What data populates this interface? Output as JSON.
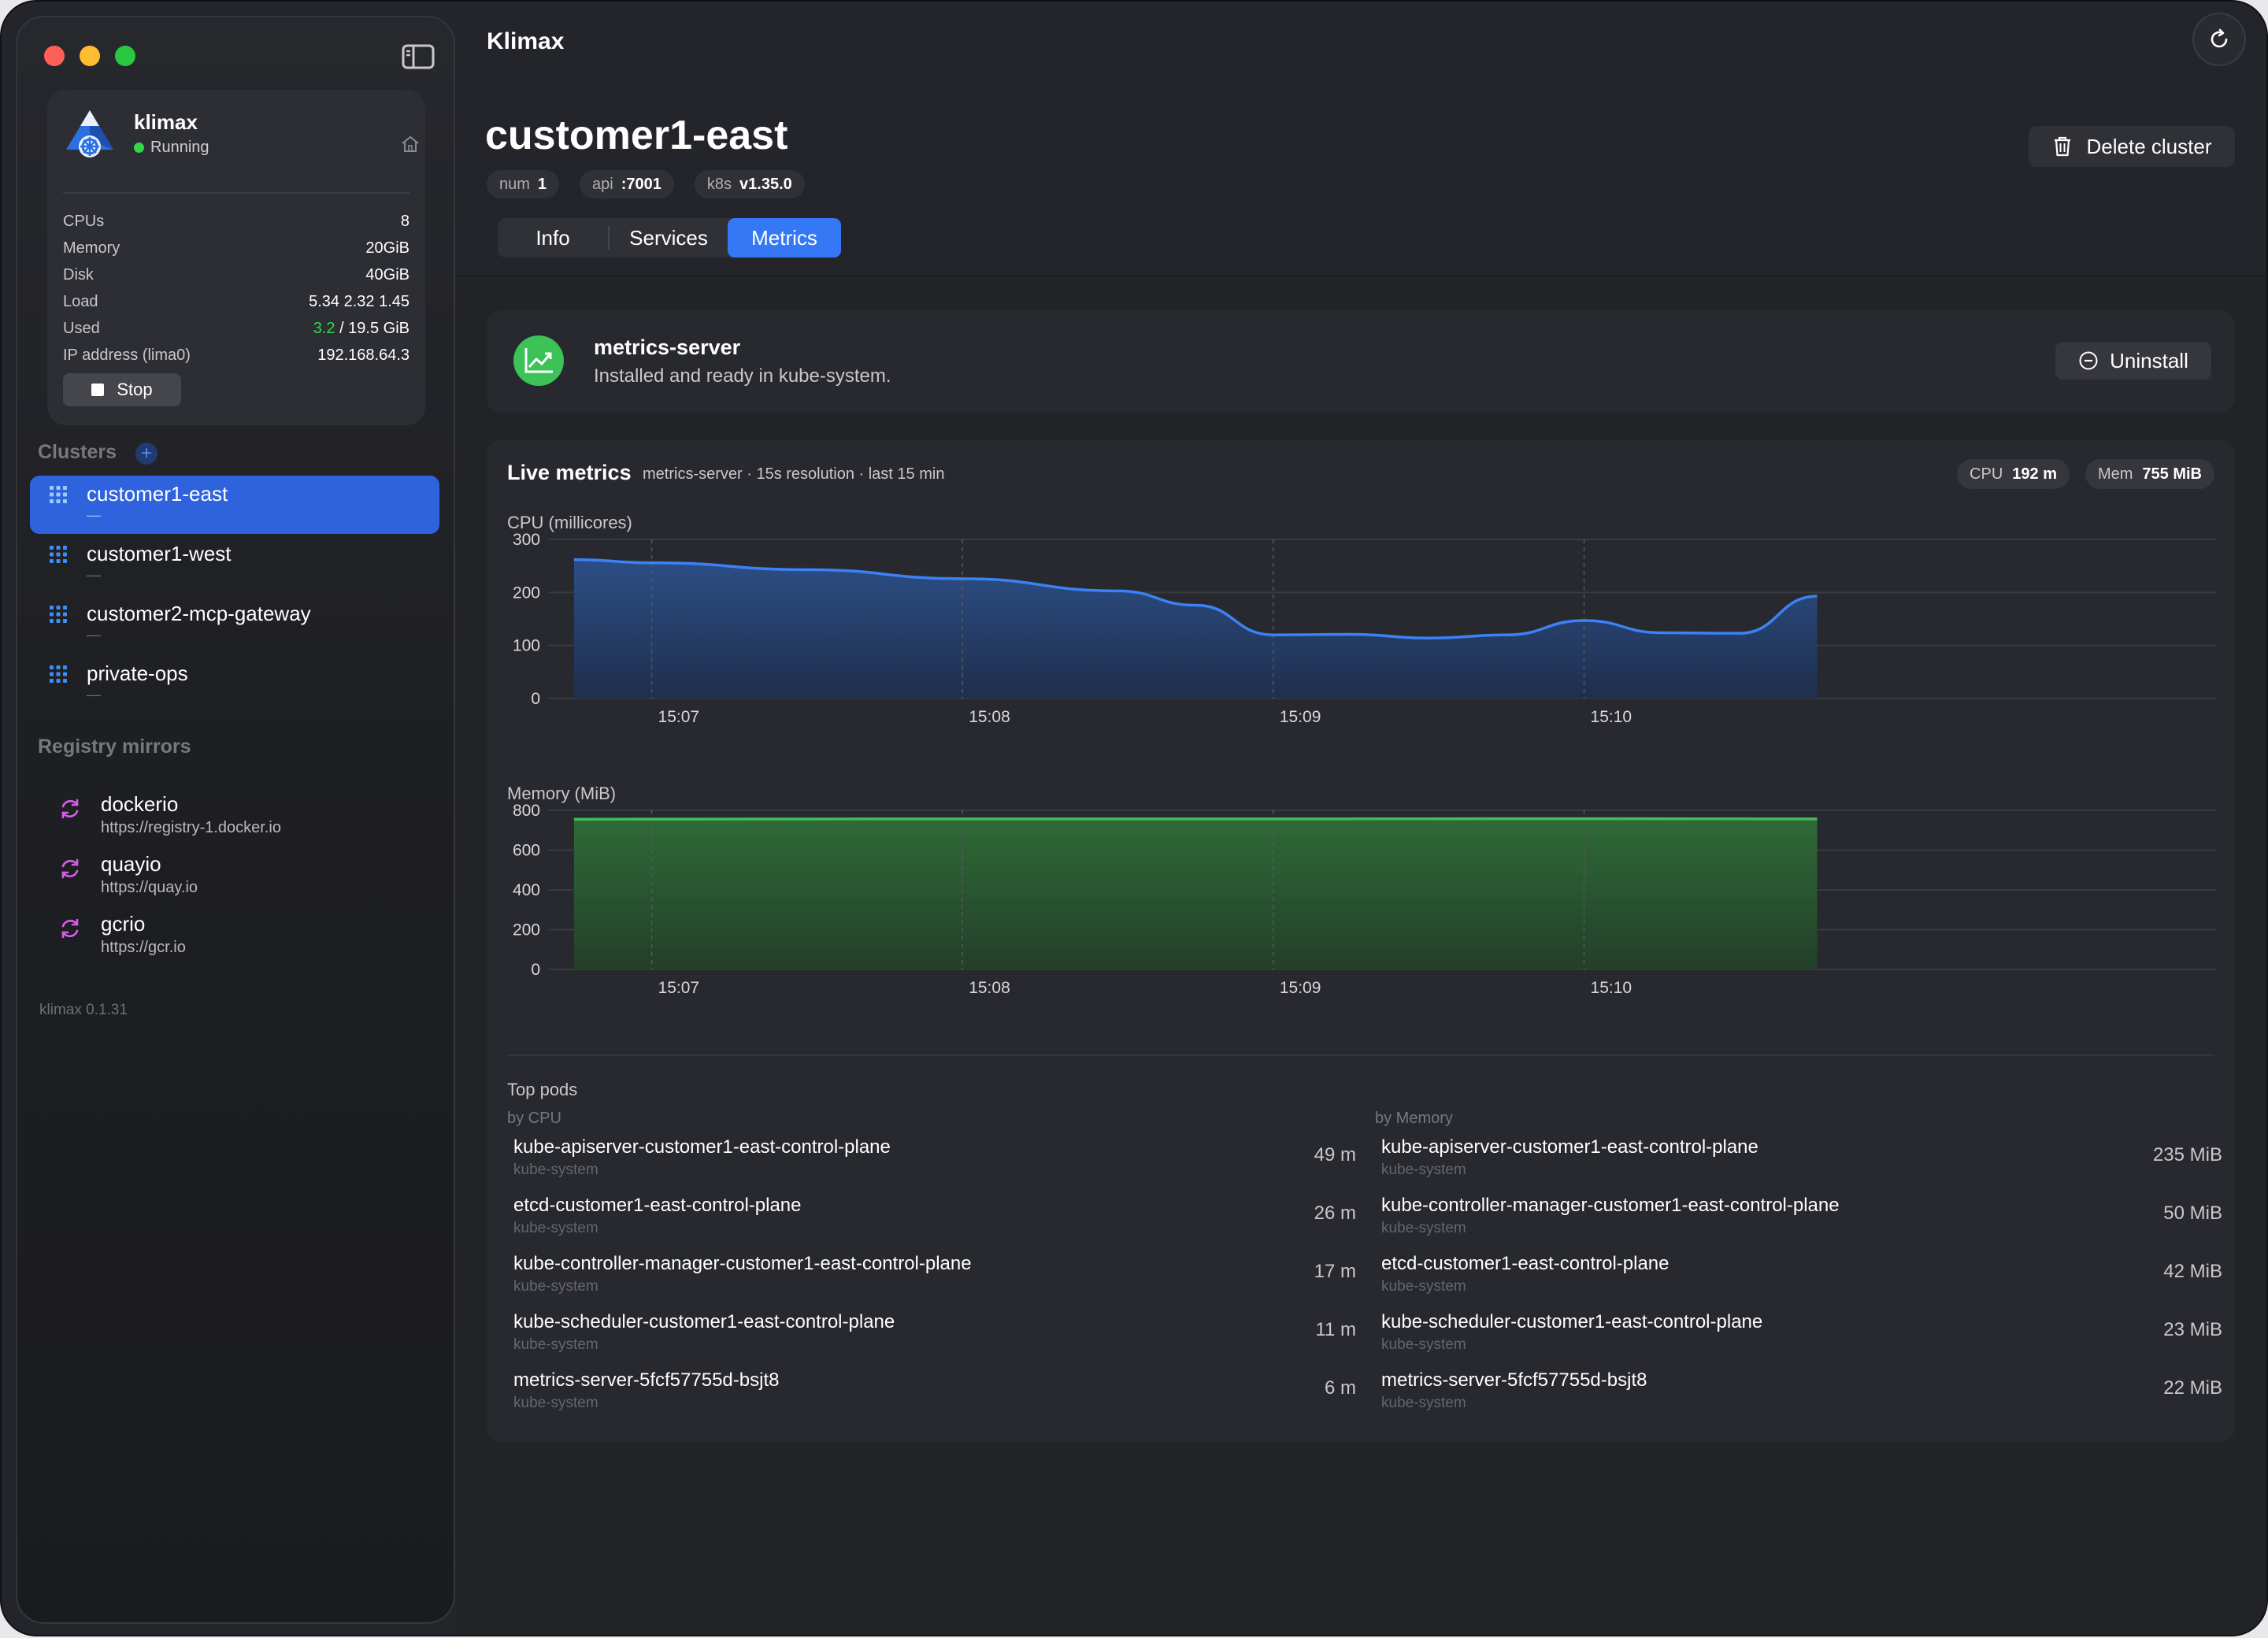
{
  "app": {
    "title": "Klimax",
    "version": "klimax 0.1.31"
  },
  "vm": {
    "name": "klimax",
    "status": "Running",
    "rows": [
      {
        "key": "CPUs",
        "value": "8"
      },
      {
        "key": "Memory",
        "value": "20GiB"
      },
      {
        "key": "Disk",
        "value": "40GiB"
      },
      {
        "key": "Load",
        "value": "5.34 2.32 1.45"
      },
      {
        "key": "Used",
        "value_used": "3.2",
        "value_total": "/ 19.5 GiB"
      },
      {
        "key": "IP address (lima0)",
        "value": "192.168.64.3"
      }
    ],
    "stop_label": "Stop"
  },
  "sidebar": {
    "clusters_title": "Clusters",
    "add_icon": "+",
    "clusters": [
      {
        "name": "customer1-east",
        "sub": "—",
        "active": true
      },
      {
        "name": "customer1-west",
        "sub": "—"
      },
      {
        "name": "customer2-mcp-gateway",
        "sub": "—"
      },
      {
        "name": "private-ops",
        "sub": "—"
      }
    ],
    "mirrors_title": "Registry mirrors",
    "mirrors": [
      {
        "name": "dockerio",
        "url": "https://registry-1.docker.io"
      },
      {
        "name": "quayio",
        "url": "https://quay.io"
      },
      {
        "name": "gcrio",
        "url": "https://gcr.io"
      }
    ]
  },
  "cluster": {
    "title": "customer1-east",
    "tags": [
      {
        "label": "num",
        "value": "1"
      },
      {
        "label": "api",
        "value": ":7001"
      },
      {
        "label": "k8s",
        "value": "v1.35.0"
      }
    ],
    "delete_label": "Delete cluster",
    "tabs": [
      {
        "label": "Info"
      },
      {
        "label": "Services"
      },
      {
        "label": "Metrics",
        "active": true
      }
    ]
  },
  "metrics_server": {
    "title": "metrics-server",
    "subtitle": "Installed and ready in kube-system.",
    "uninstall_label": "Uninstall"
  },
  "live": {
    "title": "Live metrics",
    "subtitle": "metrics-server · 15s resolution · last 15 min",
    "cpu_pill_label": "CPU",
    "cpu_pill_value": "192 m",
    "mem_pill_label": "Mem",
    "mem_pill_value": "755 MiB"
  },
  "chart_data": [
    {
      "type": "area",
      "ylabel": "CPU (millicores)",
      "ylim": [
        0,
        300
      ],
      "yticks": [
        "0",
        "100",
        "200",
        "300"
      ],
      "xticks": [
        "15:07",
        "15:08",
        "15:09",
        "15:10"
      ],
      "color": "#3b82f6",
      "x": [
        "15:06:45",
        "15:07",
        "15:07:30",
        "15:08",
        "15:08:30",
        "15:08:45",
        "15:09",
        "15:09:15",
        "15:09:30",
        "15:09:45",
        "15:10",
        "15:10:15",
        "15:10:30",
        "15:10:45"
      ],
      "values": [
        262,
        256,
        243,
        226,
        203,
        176,
        120,
        121,
        114,
        120,
        147,
        124,
        123,
        193
      ]
    },
    {
      "type": "area",
      "ylabel": "Memory (MiB)",
      "ylim": [
        0,
        800
      ],
      "yticks": [
        "0",
        "200",
        "400",
        "600",
        "800"
      ],
      "xticks": [
        "15:07",
        "15:08",
        "15:09",
        "15:10"
      ],
      "color": "#3fbf56",
      "x": [
        "15:06:45",
        "15:07",
        "15:08",
        "15:09",
        "15:10",
        "15:10:45"
      ],
      "values": [
        755,
        756,
        757,
        757,
        758,
        757
      ]
    }
  ],
  "top_pods": {
    "title": "Top pods",
    "by_cpu_title": "by CPU",
    "by_mem_title": "by Memory",
    "by_cpu": [
      {
        "name": "kube-apiserver-customer1-east-control-plane",
        "ns": "kube-system",
        "value": "49 m"
      },
      {
        "name": "etcd-customer1-east-control-plane",
        "ns": "kube-system",
        "value": "26 m"
      },
      {
        "name": "kube-controller-manager-customer1-east-control-plane",
        "ns": "kube-system",
        "value": "17 m"
      },
      {
        "name": "kube-scheduler-customer1-east-control-plane",
        "ns": "kube-system",
        "value": "11 m"
      },
      {
        "name": "metrics-server-5fcf57755d-bsjt8",
        "ns": "kube-system",
        "value": "6 m"
      }
    ],
    "by_mem": [
      {
        "name": "kube-apiserver-customer1-east-control-plane",
        "ns": "kube-system",
        "value": "235 MiB"
      },
      {
        "name": "kube-controller-manager-customer1-east-control-plane",
        "ns": "kube-system",
        "value": "50 MiB"
      },
      {
        "name": "etcd-customer1-east-control-plane",
        "ns": "kube-system",
        "value": "42 MiB"
      },
      {
        "name": "kube-scheduler-customer1-east-control-plane",
        "ns": "kube-system",
        "value": "23 MiB"
      },
      {
        "name": "metrics-server-5fcf57755d-bsjt8",
        "ns": "kube-system",
        "value": "22 MiB"
      }
    ]
  }
}
